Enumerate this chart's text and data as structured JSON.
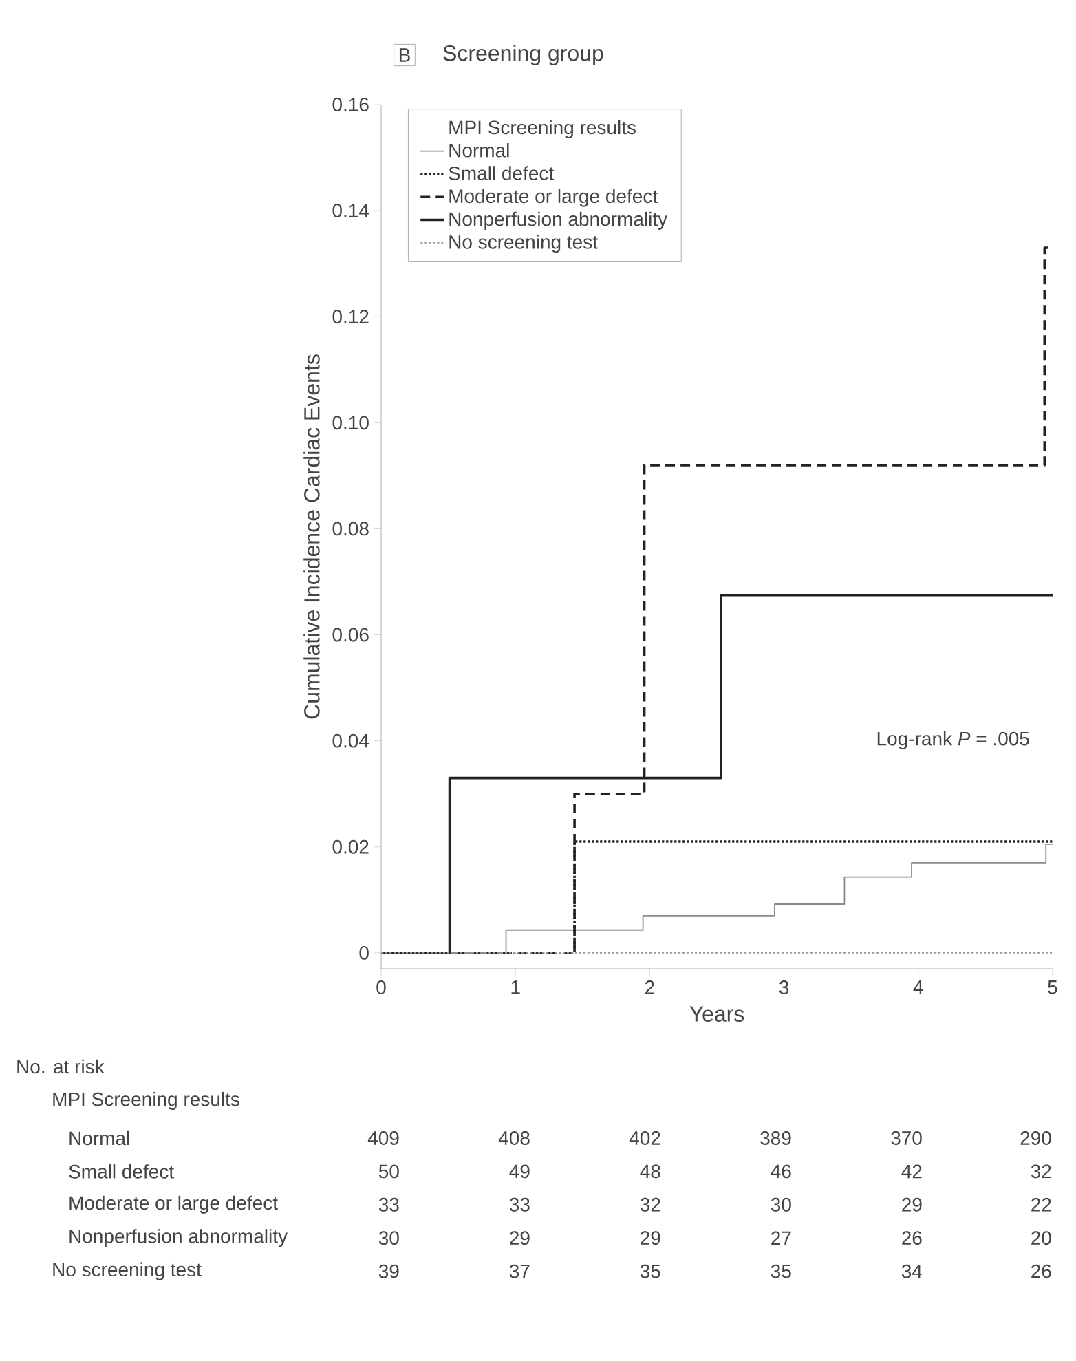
{
  "chart_data": {
    "type": "step",
    "title": "Screening group",
    "xlabel": "Years",
    "ylabel": "Cumulative Incidence Cardiac Events",
    "legend_title": "MPI Screening results",
    "xlim": [
      0,
      5
    ],
    "xticks": [
      0,
      1,
      2,
      3,
      4,
      5
    ],
    "ylim": [
      -0.003,
      0.16
    ],
    "yticks": [
      0,
      0.02,
      0.04,
      0.06,
      0.08,
      {
        "value": 0.1,
        "label": "0.10"
      },
      0.12,
      0.14,
      0.16
    ],
    "legend": "top left",
    "series": [
      {
        "name": "Normal",
        "color": "#8a8a8a",
        "line_style": "solid",
        "x": [
          0,
          0.93,
          1.95,
          2.93,
          3.45,
          3.95,
          4.95,
          5
        ],
        "values": [
          0,
          0.0043,
          0.007,
          0.0092,
          0.0143,
          0.017,
          0.0205,
          0.0205
        ]
      },
      {
        "name": "Small defect",
        "color": "#222222",
        "line_style": "dotted",
        "x": [
          0,
          1.44,
          5
        ],
        "values": [
          0,
          0.021,
          0.021
        ]
      },
      {
        "name": "Moderate or large defect",
        "color": "#222222",
        "line_style": "dashed",
        "x": [
          0,
          1.44,
          1.96,
          4.94,
          5
        ],
        "values": [
          0,
          0.03,
          0.092,
          0.133,
          0.133
        ]
      },
      {
        "name": "Nonperfusion abnormality",
        "color": "#222222",
        "line_style": "solid",
        "x": [
          0,
          0.51,
          2.53,
          5
        ],
        "values": [
          0,
          0.033,
          0.0675,
          0.0675
        ]
      },
      {
        "name": "No screening test",
        "color": "#9a9a9a",
        "line_style": "dotted",
        "x": [
          0,
          5
        ],
        "values": [
          0,
          0
        ]
      }
    ],
    "annotations": [
      "B",
      "Log-rank *P* = .005",
      "No. at risk",
      "MPI Screening results",
      "Normal",
      "409",
      "408",
      "402",
      "389",
      "370",
      "290",
      "Small defect",
      "50",
      "49",
      "48",
      "46",
      "42",
      "32",
      "Moderate or large defect",
      "33",
      "33",
      "32",
      "30",
      "29",
      "22",
      "Nonperfusion abnormality",
      "30",
      "29",
      "29",
      "27",
      "26",
      "20",
      "No screening test",
      "39",
      "37",
      "35",
      "35",
      "34",
      "26"
    ]
  }
}
